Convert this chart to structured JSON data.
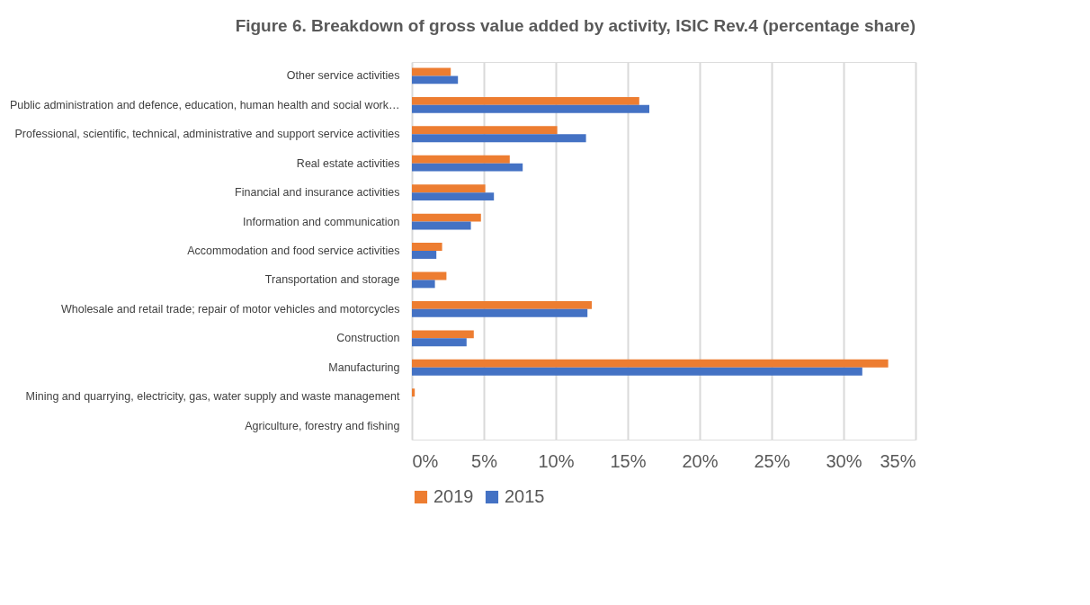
{
  "chart_data": {
    "type": "bar",
    "orientation": "horizontal",
    "title": "Figure 6. Breakdown of gross value added by activity, ISIC Rev.4 (percentage share)",
    "categories": [
      "Other service activities",
      "Public administration and defence, education, human health and social work…",
      "Professional, scientific, technical, administrative and support service activities",
      "Real estate activities",
      "Financial and insurance activities",
      "Information and communication",
      "Accommodation and food service activities",
      "Transportation and storage",
      "Wholesale and retail trade; repair of motor vehicles and motorcycles",
      "Construction",
      "Manufacturing",
      "Mining and quarrying, electricity, gas, water supply and waste management",
      "Agriculture, forestry and fishing"
    ],
    "series": [
      {
        "name": "2019",
        "color": "#ed7d31",
        "values": [
          2.7,
          15.8,
          10.1,
          6.8,
          5.1,
          4.8,
          2.1,
          2.4,
          12.5,
          4.3,
          33.1,
          0.2,
          0
        ]
      },
      {
        "name": "2015",
        "color": "#4472c4",
        "values": [
          3.2,
          16.5,
          12.1,
          7.7,
          5.7,
          4.1,
          1.7,
          1.6,
          12.2,
          3.8,
          31.3,
          null,
          0
        ]
      }
    ],
    "xlim": [
      0,
      35
    ],
    "xticks": [
      {
        "value": 0,
        "label": "0%"
      },
      {
        "value": 5,
        "label": "5%"
      },
      {
        "value": 10,
        "label": "10%"
      },
      {
        "value": 15,
        "label": "15%"
      },
      {
        "value": 20,
        "label": "20%"
      },
      {
        "value": 25,
        "label": "25%"
      },
      {
        "value": 30,
        "label": "30%"
      },
      {
        "value": 35,
        "label": "35%"
      }
    ],
    "grid": "x",
    "legend": "bottom"
  }
}
